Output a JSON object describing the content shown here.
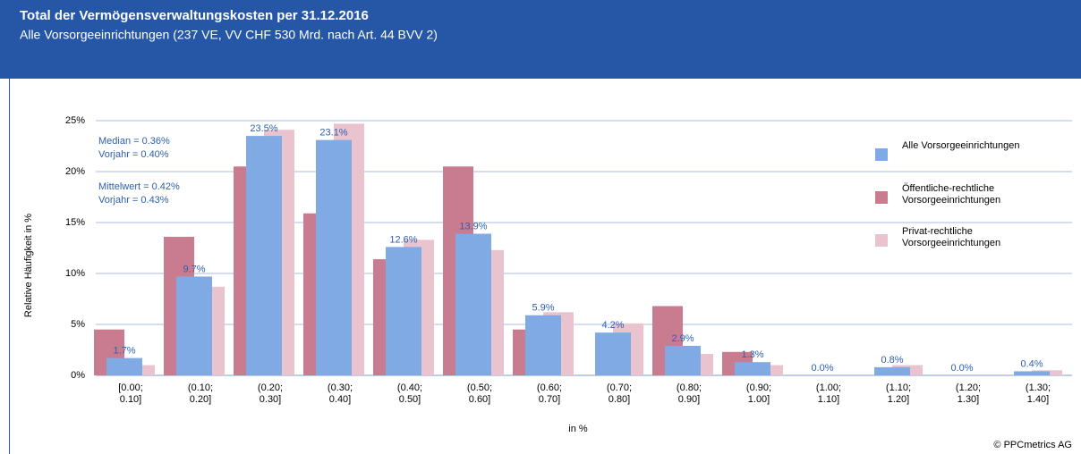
{
  "chart_data": {
    "type": "bar",
    "title": "Total der Vermögensverwaltungskosten per 31.12.2016",
    "subtitle": "Alle Vorsorgeeinrichtungen (237 VE, VV CHF 530 Mrd. nach Art. 44 BVV 2)",
    "y_label": "Relative Häufigkeit in %",
    "x_label": "in %",
    "source": "© PPCmetrics AG",
    "annotations": [
      "Median = 0.36%",
      "Vorjahr = 0.40%",
      "Mittelwert = 0.42%",
      "Vorjahr = 0.43%"
    ],
    "categories": [
      "[0.00; 0.10]",
      "(0.10; 0.20]",
      "(0.20; 0.30]",
      "(0.30; 0.40]",
      "(0.40; 0.50]",
      "(0.50; 0.60]",
      "(0.60; 0.70]",
      "(0.70; 0.80]",
      "(0.80; 0.90]",
      "(0.90; 1.00]",
      "(1.00; 1.10]",
      "(1.10; 1.20]",
      "(1.20; 1.30]",
      "(1.30; 1.40]"
    ],
    "series": [
      {
        "name": "Öffentliche-rechtliche Vorsorgeeinrichtungen",
        "color": "#c97b8f",
        "values": [
          4.5,
          13.6,
          20.5,
          15.9,
          11.4,
          20.5,
          4.5,
          0,
          6.8,
          2.3,
          0,
          0,
          0,
          0
        ]
      },
      {
        "name": "Privat-rechtliche Vorsorgeeinrichtungen",
        "color": "#e9c3cd",
        "values": [
          1.0,
          8.7,
          24.1,
          24.7,
          13.3,
          12.3,
          6.2,
          5.1,
          2.1,
          1.0,
          0,
          1.0,
          0,
          0.5
        ]
      },
      {
        "name": "Alle Vorsorgeeinrichtungen",
        "color": "#80aae4",
        "values": [
          1.7,
          9.7,
          23.5,
          23.1,
          12.6,
          13.9,
          5.9,
          4.2,
          2.9,
          1.3,
          0.0,
          0.8,
          0.0,
          0.4
        ],
        "value_labels": [
          "1.7%",
          "9.7%",
          "23.5%",
          "23.1%",
          "12.6%",
          "13.9%",
          "5.9%",
          "4.2%",
          "2.9%",
          "1.3%",
          "0.0%",
          "0.8%",
          "0.0%",
          "0.4%"
        ]
      }
    ],
    "ylim": [
      0,
      25
    ],
    "yticks": [
      {
        "value": 0,
        "label": "0%"
      },
      {
        "value": 5,
        "label": "5%"
      },
      {
        "value": 10,
        "label": "10%"
      },
      {
        "value": 15,
        "label": "15%"
      },
      {
        "value": 20,
        "label": "20%"
      },
      {
        "value": 25,
        "label": "25%"
      }
    ],
    "grid": true
  }
}
